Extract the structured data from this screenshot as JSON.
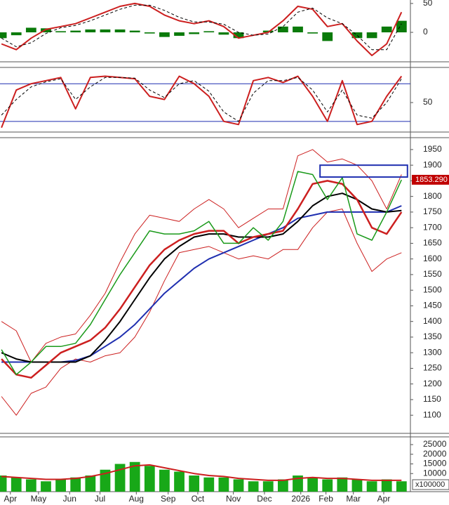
{
  "chart_data": [
    {
      "type": "combo",
      "x": [
        0,
        2,
        4,
        6,
        8,
        10,
        12,
        14,
        16,
        18,
        20,
        22,
        24,
        26,
        28,
        30,
        32,
        34,
        36,
        38,
        40,
        42,
        44,
        46,
        48,
        50,
        52,
        54
      ],
      "xlim": [
        -0.2,
        55.2
      ],
      "ylim": [
        -51,
        56
      ],
      "yticks": [
        0,
        50
      ],
      "series": [
        {
          "type": "bar",
          "color": "#0a7a0a",
          "values": [
            -10,
            -5,
            8,
            7,
            2,
            3,
            5,
            5,
            5,
            3,
            -2,
            -8,
            -6,
            -3,
            2,
            -4,
            -10,
            0,
            3,
            10,
            10,
            -2,
            -15,
            0,
            -10,
            -10,
            10,
            20
          ]
        },
        {
          "type": "line",
          "color": "#cc1f1f",
          "width": 2,
          "values": [
            -20,
            -30,
            -10,
            5,
            10,
            15,
            25,
            35,
            45,
            50,
            45,
            30,
            20,
            15,
            20,
            10,
            -10,
            -5,
            0,
            20,
            45,
            40,
            10,
            15,
            -15,
            -40,
            -20,
            35
          ]
        },
        {
          "type": "line",
          "color": "#000000",
          "width": 1,
          "dash": true,
          "values": [
            -10,
            -25,
            -18,
            -2,
            8,
            12,
            20,
            30,
            40,
            47,
            47,
            38,
            26,
            18,
            18,
            14,
            0,
            -5,
            -3,
            10,
            35,
            42,
            25,
            15,
            -5,
            -30,
            -30,
            15
          ]
        }
      ]
    },
    {
      "type": "combo",
      "x": [
        0,
        2,
        4,
        6,
        8,
        10,
        12,
        14,
        16,
        18,
        20,
        22,
        24,
        26,
        28,
        30,
        32,
        34,
        36,
        38,
        40,
        42,
        44,
        46,
        48,
        50,
        52,
        54
      ],
      "xlim": [
        -0.2,
        55.2
      ],
      "ylim": [
        3,
        106
      ],
      "yticks": [
        50
      ],
      "levels": [
        20,
        80
      ],
      "level_color": "#1f2fb0",
      "series": [
        {
          "type": "line",
          "color": "#cc1f1f",
          "width": 2,
          "values": [
            10,
            70,
            80,
            85,
            90,
            40,
            90,
            92,
            90,
            88,
            60,
            55,
            92,
            80,
            60,
            20,
            15,
            85,
            90,
            82,
            92,
            60,
            20,
            85,
            15,
            20,
            60,
            92
          ]
        },
        {
          "type": "line",
          "color": "#000000",
          "width": 1,
          "dash": true,
          "values": [
            30,
            55,
            75,
            83,
            88,
            55,
            75,
            90,
            90,
            89,
            70,
            58,
            80,
            85,
            68,
            35,
            20,
            65,
            85,
            85,
            90,
            70,
            35,
            70,
            30,
            25,
            50,
            88
          ]
        }
      ]
    },
    {
      "type": "combo",
      "x": [
        0,
        2,
        4,
        6,
        8,
        10,
        12,
        14,
        16,
        18,
        20,
        22,
        24,
        26,
        28,
        30,
        32,
        34,
        36,
        38,
        40,
        42,
        44,
        46,
        48,
        50,
        52,
        54
      ],
      "xlim": [
        -0.2,
        55.2
      ],
      "ylim": [
        1042,
        1988
      ],
      "yticks": [
        1100,
        1150,
        1200,
        1250,
        1300,
        1350,
        1400,
        1450,
        1500,
        1550,
        1600,
        1650,
        1700,
        1750,
        1800,
        1850,
        1900,
        1950
      ],
      "series": [
        {
          "type": "line",
          "color": "#cc1f1f",
          "width": 1,
          "values": [
            1400,
            1370,
            1270,
            1330,
            1350,
            1360,
            1420,
            1490,
            1590,
            1680,
            1740,
            1730,
            1720,
            1760,
            1790,
            1760,
            1700,
            1730,
            1760,
            1760,
            1930,
            1950,
            1910,
            1920,
            1900,
            1850,
            1760,
            1870
          ]
        },
        {
          "type": "line",
          "color": "#cc1f1f",
          "width": 1,
          "values": [
            1160,
            1100,
            1170,
            1190,
            1250,
            1280,
            1270,
            1290,
            1300,
            1350,
            1430,
            1530,
            1620,
            1630,
            1640,
            1620,
            1600,
            1610,
            1600,
            1630,
            1630,
            1700,
            1750,
            1760,
            1650,
            1560,
            1600,
            1620
          ]
        },
        {
          "type": "line",
          "color": "#1f2fb0",
          "width": 2,
          "values": [
            1270,
            1270,
            1270,
            1270,
            1270,
            1275,
            1290,
            1320,
            1350,
            1390,
            1440,
            1490,
            1530,
            1570,
            1600,
            1620,
            1640,
            1660,
            1680,
            1700,
            1730,
            1740,
            1750,
            1750,
            1750,
            1750,
            1750,
            1770
          ]
        },
        {
          "type": "line",
          "color": "#000000",
          "width": 2,
          "values": [
            1300,
            1280,
            1270,
            1270,
            1270,
            1270,
            1290,
            1340,
            1400,
            1470,
            1540,
            1600,
            1640,
            1670,
            1680,
            1680,
            1670,
            1670,
            1670,
            1680,
            1720,
            1770,
            1800,
            1810,
            1790,
            1760,
            1750,
            1755
          ]
        },
        {
          "type": "line",
          "color": "#cc1f1f",
          "width": 2.5,
          "values": [
            1280,
            1230,
            1220,
            1260,
            1300,
            1320,
            1340,
            1380,
            1440,
            1510,
            1580,
            1630,
            1660,
            1680,
            1690,
            1690,
            1650,
            1670,
            1680,
            1690,
            1760,
            1840,
            1850,
            1840,
            1790,
            1700,
            1680,
            1750
          ]
        },
        {
          "type": "line",
          "color": "#1a9a1a",
          "width": 1.5,
          "values": [
            1310,
            1230,
            1270,
            1320,
            1320,
            1330,
            1390,
            1470,
            1550,
            1620,
            1690,
            1680,
            1680,
            1690,
            1720,
            1650,
            1650,
            1700,
            1660,
            1720,
            1880,
            1870,
            1790,
            1860,
            1680,
            1660,
            1750,
            1853
          ]
        }
      ],
      "zone": {
        "x": [
          43,
          54.8
        ],
        "y": [
          1862,
          1900
        ],
        "color": "#1f2fb0"
      },
      "last_label": {
        "value": 1853.29,
        "label": "1853.290",
        "color": "#c00000"
      }
    },
    {
      "type": "combo",
      "x": [
        0,
        2,
        4,
        6,
        8,
        10,
        12,
        14,
        16,
        18,
        20,
        22,
        24,
        26,
        28,
        30,
        32,
        34,
        36,
        38,
        40,
        42,
        44,
        46,
        48,
        50,
        52,
        54
      ],
      "xlim": [
        -0.2,
        55.2
      ],
      "ylim": [
        636,
        29000
      ],
      "yticks": [
        10000,
        15000,
        20000,
        25000
      ],
      "unit_label": "x100000",
      "xticks": [
        {
          "value": 1.2,
          "label": "Apr"
        },
        {
          "value": 5,
          "label": "May"
        },
        {
          "value": 9.2,
          "label": "Jun"
        },
        {
          "value": 13.3,
          "label": "Jul"
        },
        {
          "value": 18.2,
          "label": "Aug"
        },
        {
          "value": 22.5,
          "label": "Sep"
        },
        {
          "value": 26.5,
          "label": "Oct"
        },
        {
          "value": 31.3,
          "label": "Nov"
        },
        {
          "value": 35.5,
          "label": "Dec"
        },
        {
          "value": 40.4,
          "label": "2026"
        },
        {
          "value": 43.8,
          "label": "Feb"
        },
        {
          "value": 47.5,
          "label": "Mar"
        },
        {
          "value": 51.6,
          "label": "Apr"
        }
      ],
      "series": [
        {
          "type": "bar",
          "color": "#18a818",
          "values": [
            9000,
            8000,
            7000,
            6000,
            7000,
            8000,
            9000,
            12000,
            15000,
            16000,
            14000,
            12000,
            11000,
            9000,
            8000,
            8000,
            7000,
            6000,
            6000,
            7000,
            9000,
            8000,
            7000,
            8000,
            7000,
            6000,
            7000,
            6000
          ]
        },
        {
          "type": "line",
          "color": "#cc1f1f",
          "width": 2,
          "values": [
            8500,
            8000,
            7500,
            7000,
            7000,
            7500,
            8500,
            10000,
            12000,
            14000,
            14500,
            13000,
            11500,
            10000,
            9000,
            8500,
            7500,
            7000,
            6500,
            6500,
            7500,
            8000,
            7500,
            7500,
            7000,
            6500,
            6500,
            6500
          ]
        }
      ]
    }
  ]
}
